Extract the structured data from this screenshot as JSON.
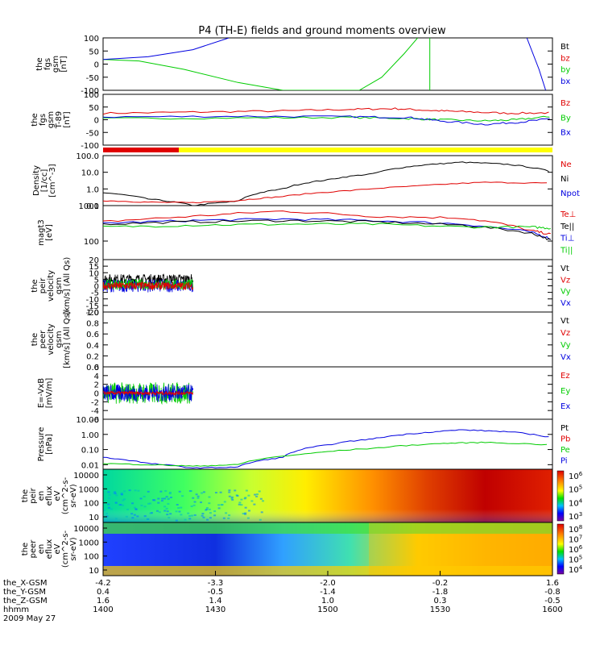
{
  "chart_data": {
    "type": "line",
    "title": "P4 (TH-E) fields and ground moments overview",
    "colors": {
      "black": "#000000",
      "red": "#e00000",
      "green": "#00cc00",
      "blue": "#0000e0",
      "yellow": "#ffff00"
    },
    "time_axis": {
      "label": "hhmm",
      "date": "2009 May 27",
      "ticks": [
        "1400",
        "1430",
        "1500",
        "1530",
        "1600"
      ],
      "ephemeris": [
        {
          "label": "the_X-GSM",
          "values": [
            "-4.2",
            "-3.3",
            "-2.0",
            "-0.2",
            "1.6"
          ]
        },
        {
          "label": "the_Y-GSM",
          "values": [
            "0.4",
            "-0.5",
            "-1.4",
            "-1.8",
            "-0.8"
          ]
        },
        {
          "label": "the_Z-GSM",
          "values": [
            "1.6",
            "1.4",
            "1.0",
            "0.3",
            "-0.5"
          ]
        }
      ]
    },
    "panels": [
      {
        "id": "fgs",
        "ylabel": [
          "the",
          "fgs",
          "gsm",
          "[nT]"
        ],
        "ylim": [
          -100,
          100
        ],
        "yticks": [
          "100",
          "50",
          "0",
          "-50",
          "-100"
        ],
        "legend": [
          {
            "name": "Bt",
            "color": "black"
          },
          {
            "name": "bz",
            "color": "red"
          },
          {
            "name": "by",
            "color": "green"
          },
          {
            "name": "bx",
            "color": "blue"
          }
        ],
        "series": [
          {
            "name": "by",
            "color": "green",
            "values": [
              [
                0,
                18
              ],
              [
                0.08,
                12
              ],
              [
                0.18,
                -20
              ],
              [
                0.3,
                -70
              ],
              [
                0.4,
                -100
              ],
              [
                0.57,
                -100
              ],
              [
                0.62,
                -50
              ],
              [
                0.67,
                40
              ],
              [
                0.7,
                100
              ]
            ]
          },
          {
            "name": "bx",
            "color": "blue",
            "values": [
              [
                0,
                18
              ],
              [
                0.1,
                28
              ],
              [
                0.2,
                55
              ],
              [
                0.28,
                100
              ]
            ]
          },
          {
            "name": "bx",
            "color": "blue",
            "values": [
              [
                0.943,
                100
              ],
              [
                0.97,
                -20
              ],
              [
                0.985,
                -100
              ]
            ]
          },
          {
            "name": "by",
            "color": "green",
            "values": [
              [
                0.727,
                100
              ],
              [
                0.727,
                -100
              ]
            ]
          }
        ]
      },
      {
        "id": "fgl",
        "ylabel": [
          "the",
          "fgs",
          "gsm",
          "T-89",
          "[nT]"
        ],
        "ylim": [
          -110,
          110
        ],
        "yticks": [
          "100",
          "50",
          "0",
          "-50",
          "-100"
        ],
        "legend": [
          {
            "name": "Bz",
            "color": "red"
          },
          {
            "name": "By",
            "color": "green"
          },
          {
            "name": "Bx",
            "color": "blue"
          }
        ],
        "series": [
          {
            "name": "Bz",
            "color": "red",
            "values": [
              [
                0,
                28
              ],
              [
                0.2,
                33
              ],
              [
                0.4,
                38
              ],
              [
                0.55,
                45
              ],
              [
                0.65,
                48
              ],
              [
                0.73,
                40
              ],
              [
                0.8,
                35
              ],
              [
                0.9,
                28
              ],
              [
                1,
                30
              ]
            ]
          },
          {
            "name": "By",
            "color": "green",
            "values": [
              [
                0,
                5
              ],
              [
                0.3,
                8
              ],
              [
                0.55,
                10
              ],
              [
                0.68,
                5
              ],
              [
                0.75,
                0
              ],
              [
                0.85,
                -5
              ],
              [
                0.92,
                0
              ],
              [
                1,
                15
              ]
            ]
          },
          {
            "name": "Bx",
            "color": "blue",
            "values": [
              [
                0,
                12
              ],
              [
                0.3,
                15
              ],
              [
                0.55,
                13
              ],
              [
                0.68,
                10
              ],
              [
                0.75,
                -5
              ],
              [
                0.85,
                -20
              ],
              [
                0.93,
                -10
              ],
              [
                1,
                5
              ]
            ]
          }
        ]
      },
      {
        "id": "dens",
        "ylabel": [
          "Density",
          "[1/cc]",
          "[cm^-3]"
        ],
        "scale": "log",
        "ylim": [
          0.1,
          100
        ],
        "yticks": [
          "100.0",
          "10.0",
          "1.0",
          "0.1"
        ],
        "legend": [
          {
            "name": "Ne",
            "color": "red"
          },
          {
            "name": "Ni",
            "color": "black"
          },
          {
            "name": "Npot",
            "color": "blue"
          }
        ],
        "series": [
          {
            "name": "Ni",
            "color": "black",
            "values": [
              [
                0,
                0.6
              ],
              [
                0.1,
                0.25
              ],
              [
                0.2,
                0.1
              ],
              [
                0.3,
                0.18
              ],
              [
                0.4,
                1.0
              ],
              [
                0.5,
                3.5
              ],
              [
                0.6,
                8
              ],
              [
                0.7,
                25
              ],
              [
                0.8,
                40
              ],
              [
                0.9,
                30
              ],
              [
                1,
                10
              ]
            ]
          },
          {
            "name": "Ne",
            "color": "red",
            "values": [
              [
                0,
                0.2
              ],
              [
                0.1,
                0.16
              ],
              [
                0.2,
                0.15
              ],
              [
                0.3,
                0.2
              ],
              [
                0.4,
                0.35
              ],
              [
                0.55,
                0.8
              ],
              [
                0.7,
                1.5
              ],
              [
                0.85,
                2.5
              ],
              [
                1,
                2.2
              ]
            ]
          }
        ]
      },
      {
        "id": "temp",
        "ylabel": [
          "magt3",
          "[eV]"
        ],
        "scale": "log",
        "ylim": [
          30,
          1000
        ],
        "yticks": [
          "1000",
          "100"
        ],
        "legend": [
          {
            "name": "Te⊥",
            "color": "red"
          },
          {
            "name": "Te||",
            "color": "black"
          },
          {
            "name": "Ti⊥",
            "color": "blue"
          },
          {
            "name": "Ti||",
            "color": "green"
          }
        ],
        "series": [
          {
            "name": "Te⊥",
            "color": "red",
            "values": [
              [
                0,
                350
              ],
              [
                0.2,
                500
              ],
              [
                0.4,
                700
              ],
              [
                0.6,
                500
              ],
              [
                0.8,
                450
              ],
              [
                0.95,
                200
              ],
              [
                1,
                150
              ]
            ]
          },
          {
            "name": "Ti⊥",
            "color": "blue",
            "values": [
              [
                0,
                320
              ],
              [
                0.2,
                380
              ],
              [
                0.4,
                420
              ],
              [
                0.6,
                380
              ],
              [
                0.8,
                300
              ],
              [
                0.95,
                180
              ],
              [
                1,
                110
              ]
            ]
          },
          {
            "name": "Te||",
            "color": "black",
            "values": [
              [
                0,
                300
              ],
              [
                0.2,
                350
              ],
              [
                0.4,
                380
              ],
              [
                0.6,
                350
              ],
              [
                0.8,
                280
              ],
              [
                0.95,
                170
              ],
              [
                1,
                100
              ]
            ]
          },
          {
            "name": "Ti||",
            "color": "green",
            "values": [
              [
                0,
                250
              ],
              [
                0.2,
                280
              ],
              [
                0.4,
                300
              ],
              [
                0.6,
                300
              ],
              [
                0.8,
                250
              ],
              [
                0.95,
                250
              ],
              [
                1,
                230
              ]
            ]
          }
        ]
      },
      {
        "id": "vi",
        "ylabel": [
          "the",
          "peir",
          "velocity",
          "gsm",
          "[km/s] (All Qs)"
        ],
        "ylim": [
          -20,
          20
        ],
        "yticks": [
          "20",
          "15",
          "10",
          "5",
          "0",
          "-5",
          "-10",
          "-15",
          "-20"
        ],
        "legend": [
          {
            "name": "Vt",
            "color": "black"
          },
          {
            "name": "Vz",
            "color": "red"
          },
          {
            "name": "Vy",
            "color": "green"
          },
          {
            "name": "Vx",
            "color": "blue"
          }
        ],
        "noise_series": [
          {
            "name": "Vt",
            "color": "black",
            "x": [
              0,
              0.2
            ],
            "center": 5,
            "amp": 4
          },
          {
            "name": "Vx",
            "color": "blue",
            "x": [
              0,
              0.2
            ],
            "center": 0,
            "amp": 5
          },
          {
            "name": "Vy",
            "color": "green",
            "x": [
              0,
              0.2
            ],
            "center": 1,
            "amp": 4
          },
          {
            "name": "Vz",
            "color": "red",
            "x": [
              0,
              0.2
            ],
            "center": 0,
            "amp": 3
          }
        ]
      },
      {
        "id": "ve",
        "ylabel": [
          "the",
          "peer",
          "velocity",
          "gsm",
          "[km/s] (All Qs)"
        ],
        "ylim": [
          0,
          1
        ],
        "yticks": [
          "1.0",
          "0.8",
          "0.6",
          "0.4",
          "0.2",
          "0.0"
        ],
        "legend": [
          {
            "name": "Vt",
            "color": "black"
          },
          {
            "name": "Vz",
            "color": "red"
          },
          {
            "name": "Vy",
            "color": "green"
          },
          {
            "name": "Vx",
            "color": "blue"
          }
        ],
        "series": []
      },
      {
        "id": "efield",
        "ylabel": [
          "E=-VxB",
          "[mV/m]"
        ],
        "ylim": [
          -6,
          6
        ],
        "yticks": [
          "6",
          "4",
          "2",
          "0",
          "-2",
          "-4",
          "-6"
        ],
        "legend": [
          {
            "name": "Ez",
            "color": "red"
          },
          {
            "name": "Ey",
            "color": "green"
          },
          {
            "name": "Ex",
            "color": "blue"
          }
        ],
        "noise_series": [
          {
            "name": "Ey",
            "color": "green",
            "x": [
              0,
              0.2
            ],
            "center": 0,
            "amp": 2.5
          },
          {
            "name": "Ex",
            "color": "blue",
            "x": [
              0,
              0.2
            ],
            "center": 0,
            "amp": 2
          },
          {
            "name": "Ez",
            "color": "red",
            "x": [
              0,
              0.2
            ],
            "center": 0,
            "amp": 0.4
          }
        ]
      },
      {
        "id": "press",
        "ylabel": [
          "Pressure",
          "[nPa]"
        ],
        "scale": "log",
        "ylim": [
          0.005,
          10
        ],
        "yticks": [
          "10.00",
          "1.00",
          "0.10",
          "0.01"
        ],
        "legend": [
          {
            "name": "Pt",
            "color": "black"
          },
          {
            "name": "Pb",
            "color": "red"
          },
          {
            "name": "Pe",
            "color": "green"
          },
          {
            "name": "Pi",
            "color": "blue"
          }
        ],
        "series": [
          {
            "name": "Pi",
            "color": "blue",
            "values": [
              [
                0,
                0.03
              ],
              [
                0.1,
                0.012
              ],
              [
                0.2,
                0.006
              ],
              [
                0.3,
                0.007
              ],
              [
                0.4,
                0.03
              ],
              [
                0.5,
                0.2
              ],
              [
                0.6,
                0.5
              ],
              [
                0.7,
                1.2
              ],
              [
                0.8,
                2.0
              ],
              [
                0.9,
                1.5
              ],
              [
                1,
                0.6
              ]
            ]
          },
          {
            "name": "Pe",
            "color": "green",
            "values": [
              [
                0,
                0.012
              ],
              [
                0.1,
                0.01
              ],
              [
                0.2,
                0.008
              ],
              [
                0.3,
                0.01
              ],
              [
                0.45,
                0.05
              ],
              [
                0.6,
                0.12
              ],
              [
                0.75,
                0.25
              ],
              [
                0.85,
                0.3
              ],
              [
                1,
                0.2
              ]
            ]
          }
        ]
      },
      {
        "id": "ispec",
        "type": "heatmap",
        "ylabel": [
          "the",
          "peir",
          "en",
          "eflux",
          "eV",
          "(cm^2-s-",
          "sr-eV)"
        ],
        "yticks": [
          "10000",
          "1000",
          "100",
          "10"
        ],
        "colorbar": {
          "ticks": [
            "10^6",
            "10^5",
            "10^4",
            "10^3"
          ]
        }
      },
      {
        "id": "espec",
        "type": "heatmap",
        "ylabel": [
          "the",
          "peer",
          "en",
          "eflux",
          "eV",
          "(cm^2-s-",
          "sr-eV)"
        ],
        "yticks": [
          "10000",
          "1000",
          "100",
          "10"
        ],
        "colorbar": {
          "ticks": [
            "10^8",
            "10^7",
            "10^6",
            "10^5",
            "10^4"
          ]
        }
      }
    ]
  }
}
